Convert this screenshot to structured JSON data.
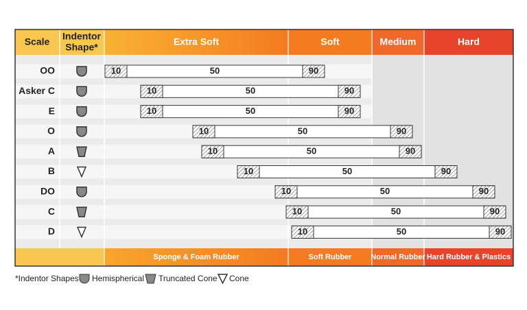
{
  "header": {
    "scale": "Scale",
    "indentor_shape": [
      "Indentor",
      "Shape*"
    ],
    "columns": [
      "Extra Soft",
      "Soft",
      "Medium",
      "Hard"
    ]
  },
  "rows": [
    {
      "scale": "OO",
      "low": "10",
      "mid": "50",
      "high": "90"
    },
    {
      "scale": "Asker C",
      "low": "10",
      "mid": "50",
      "high": "90"
    },
    {
      "scale": "E",
      "low": "10",
      "mid": "50",
      "high": "90"
    },
    {
      "scale": "O",
      "low": "10",
      "mid": "50",
      "high": "90"
    },
    {
      "scale": "A",
      "low": "10",
      "mid": "50",
      "high": "90"
    },
    {
      "scale": "B",
      "low": "10",
      "mid": "50",
      "high": "90"
    },
    {
      "scale": "DO",
      "low": "10",
      "mid": "50",
      "high": "90"
    },
    {
      "scale": "C",
      "low": "10",
      "mid": "50",
      "high": "90"
    },
    {
      "scale": "D",
      "low": "10",
      "mid": "50",
      "high": "90"
    }
  ],
  "footer": [
    "Sponge & Foam Rubber",
    "Soft Rubber",
    "Normal Rubber",
    "Hard Rubber & Plastics"
  ],
  "legend": {
    "title": "*Indentor Shapes",
    "items": [
      "Hemispherical",
      "Truncated Cone",
      "Cone"
    ]
  }
}
